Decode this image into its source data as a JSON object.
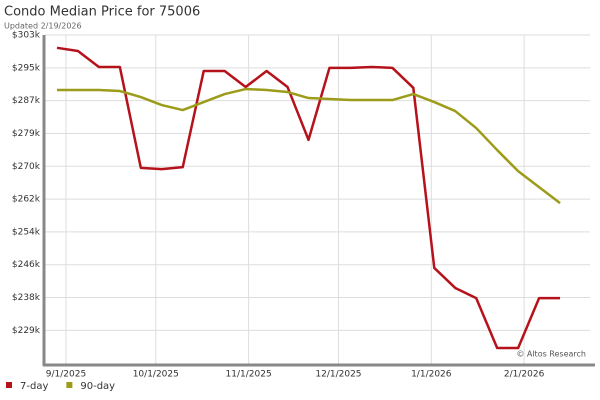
{
  "chart_data": {
    "type": "line",
    "title": "Condo Median Price for 75006",
    "subtitle": "Updated 2/19/2026",
    "annotation": "© Altos Research",
    "x": [
      "8/29/2025",
      "9/5/2025",
      "9/12/2025",
      "9/19/2025",
      "9/26/2025",
      "10/3/2025",
      "10/10/2025",
      "10/17/2025",
      "10/24/2025",
      "10/31/2025",
      "11/7/2025",
      "11/14/2025",
      "11/21/2025",
      "11/28/2025",
      "12/5/2025",
      "12/12/2025",
      "12/19/2025",
      "12/26/2025",
      "1/2/2026",
      "1/9/2026",
      "1/16/2026",
      "1/23/2026",
      "1/30/2026",
      "2/6/2026",
      "2/13/2026"
    ],
    "series": [
      {
        "name": "7-day",
        "color": "#b5121b",
        "values": [
          300000,
          299200,
          295200,
          295200,
          270000,
          269700,
          270200,
          294200,
          294200,
          290200,
          294200,
          290200,
          277000,
          295000,
          295000,
          295200,
          295000,
          290000,
          245000,
          240000,
          237450,
          225000,
          225000,
          237450,
          237450
        ]
      },
      {
        "name": "90-day",
        "color": "#9c9c1a",
        "values": [
          289450,
          289450,
          289450,
          289200,
          287700,
          285700,
          284450,
          286450,
          288450,
          289700,
          289450,
          288950,
          287450,
          287200,
          286950,
          286950,
          286950,
          288450,
          286450,
          284200,
          279950,
          274450,
          269200,
          265200,
          261200
        ]
      }
    ],
    "xlim": [
      "8/25/2025",
      "2/23/2026"
    ],
    "xticks": [
      "9/1/2025",
      "10/1/2025",
      "11/1/2025",
      "12/1/2025",
      "1/1/2026",
      "2/1/2026"
    ],
    "ylim": [
      221000,
      303200
    ],
    "yticks": [
      {
        "value": 229400,
        "label": "$229k"
      },
      {
        "value": 237600,
        "label": "$238k"
      },
      {
        "value": 245800,
        "label": "$246k"
      },
      {
        "value": 254000,
        "label": "$254k"
      },
      {
        "value": 262200,
        "label": "$262k"
      },
      {
        "value": 270400,
        "label": "$270k"
      },
      {
        "value": 278600,
        "label": "$279k"
      },
      {
        "value": 286800,
        "label": "$287k"
      },
      {
        "value": 295000,
        "label": "$295k"
      },
      {
        "value": 303200,
        "label": "$303k"
      }
    ],
    "grid": true,
    "legend": "bottom-left"
  }
}
